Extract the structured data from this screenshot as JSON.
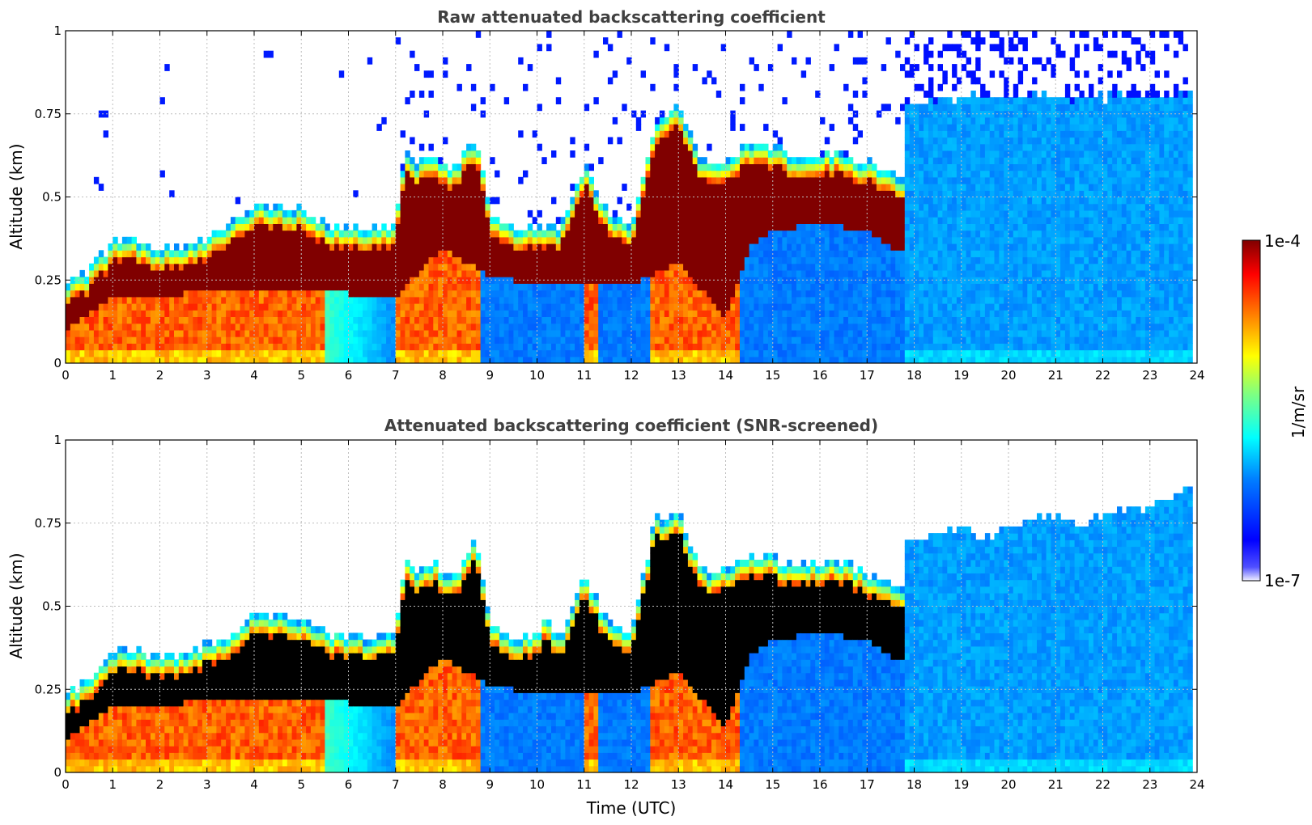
{
  "chart_data": [
    {
      "type": "heatmap",
      "title": "Raw attenuated backscattering coefficient",
      "xlabel": "",
      "ylabel": "Altitude (km)",
      "xlim": [
        0,
        24
      ],
      "ylim": [
        0,
        1
      ],
      "x_ticks": [
        0,
        1,
        2,
        3,
        4,
        5,
        6,
        7,
        8,
        9,
        10,
        11,
        12,
        13,
        14,
        15,
        16,
        17,
        18,
        19,
        20,
        21,
        22,
        23,
        24
      ],
      "y_ticks": [
        0,
        0.25,
        0.5,
        0.75,
        1
      ],
      "y_tick_labels": [
        "0",
        "0.25",
        "0.5",
        "0.75",
        "1"
      ],
      "grid": true,
      "snr_screened": false,
      "layer_top_km": [
        [
          0,
          0.24
        ],
        [
          0.5,
          0.28
        ],
        [
          1,
          0.37
        ],
        [
          1.5,
          0.37
        ],
        [
          2,
          0.34
        ],
        [
          2.5,
          0.36
        ],
        [
          3,
          0.38
        ],
        [
          3.5,
          0.42
        ],
        [
          4,
          0.48
        ],
        [
          4.5,
          0.47
        ],
        [
          5,
          0.46
        ],
        [
          5.5,
          0.42
        ],
        [
          6,
          0.41
        ],
        [
          6.5,
          0.4
        ],
        [
          7,
          0.42
        ],
        [
          7.2,
          0.64
        ],
        [
          7.5,
          0.6
        ],
        [
          7.8,
          0.64
        ],
        [
          8.2,
          0.58
        ],
        [
          8.7,
          0.68
        ],
        [
          9,
          0.46
        ],
        [
          9.5,
          0.4
        ],
        [
          10,
          0.42
        ],
        [
          10.5,
          0.4
        ],
        [
          11,
          0.6
        ],
        [
          11.5,
          0.45
        ],
        [
          12,
          0.42
        ],
        [
          12.5,
          0.72
        ],
        [
          13,
          0.78
        ],
        [
          13.5,
          0.6
        ],
        [
          14,
          0.62
        ],
        [
          14.5,
          0.66
        ],
        [
          15,
          0.65
        ],
        [
          15.5,
          0.62
        ],
        [
          16,
          0.63
        ],
        [
          16.5,
          0.64
        ],
        [
          17,
          0.6
        ],
        [
          17.5,
          0.58
        ],
        [
          17.75,
          0.55
        ]
      ],
      "layer_base_km": [
        [
          0,
          0.1
        ],
        [
          1,
          0.2
        ],
        [
          2,
          0.2
        ],
        [
          3,
          0.22
        ],
        [
          4,
          0.23
        ],
        [
          5,
          0.22
        ],
        [
          6,
          0.21
        ],
        [
          7,
          0.2
        ],
        [
          8,
          0.35
        ],
        [
          9,
          0.26
        ],
        [
          10,
          0.24
        ],
        [
          11,
          0.24
        ],
        [
          12,
          0.24
        ],
        [
          13,
          0.3
        ],
        [
          14,
          0.14
        ],
        [
          14.5,
          0.35
        ],
        [
          15,
          0.4
        ],
        [
          16,
          0.42
        ],
        [
          17,
          0.4
        ],
        [
          17.75,
          0.33
        ]
      ],
      "cloud_top_after_18_km": [
        [
          18,
          0.78
        ],
        [
          19,
          0.8
        ],
        [
          20,
          0.8
        ],
        [
          21,
          0.8
        ],
        [
          22,
          0.8
        ],
        [
          23,
          0.8
        ],
        [
          23.8,
          0.8
        ]
      ]
    },
    {
      "type": "heatmap",
      "title": "Attenuated backscattering coefficient (SNR-screened)",
      "xlabel": "Time (UTC)",
      "ylabel": "Altitude (km)",
      "xlim": [
        0,
        24
      ],
      "ylim": [
        0,
        1
      ],
      "x_ticks": [
        0,
        1,
        2,
        3,
        4,
        5,
        6,
        7,
        8,
        9,
        10,
        11,
        12,
        13,
        14,
        15,
        16,
        17,
        18,
        19,
        20,
        21,
        22,
        23,
        24
      ],
      "y_ticks": [
        0,
        0.25,
        0.5,
        0.75,
        1
      ],
      "y_tick_labels": [
        "0",
        "0.25",
        "0.5",
        "0.75",
        "1"
      ],
      "grid": true,
      "snr_screened": true,
      "layer_top_km": [
        [
          0,
          0.24
        ],
        [
          0.5,
          0.28
        ],
        [
          1,
          0.37
        ],
        [
          1.5,
          0.37
        ],
        [
          2,
          0.34
        ],
        [
          2.5,
          0.36
        ],
        [
          3,
          0.38
        ],
        [
          3.5,
          0.42
        ],
        [
          4,
          0.48
        ],
        [
          4.5,
          0.47
        ],
        [
          5,
          0.46
        ],
        [
          5.5,
          0.42
        ],
        [
          6,
          0.41
        ],
        [
          6.5,
          0.4
        ],
        [
          7,
          0.42
        ],
        [
          7.2,
          0.64
        ],
        [
          7.5,
          0.6
        ],
        [
          7.8,
          0.64
        ],
        [
          8.2,
          0.58
        ],
        [
          8.7,
          0.7
        ],
        [
          9,
          0.46
        ],
        [
          9.5,
          0.4
        ],
        [
          10,
          0.42
        ],
        [
          10.2,
          0.47
        ],
        [
          10.5,
          0.4
        ],
        [
          11,
          0.6
        ],
        [
          11.5,
          0.45
        ],
        [
          12,
          0.42
        ],
        [
          12.5,
          0.76
        ],
        [
          13,
          0.78
        ],
        [
          13.5,
          0.6
        ],
        [
          14,
          0.62
        ],
        [
          14.5,
          0.66
        ],
        [
          15,
          0.65
        ],
        [
          15.5,
          0.62
        ],
        [
          16,
          0.63
        ],
        [
          16.5,
          0.64
        ],
        [
          17,
          0.6
        ],
        [
          17.5,
          0.58
        ],
        [
          17.75,
          0.55
        ]
      ],
      "layer_base_km": [
        [
          0,
          0.1
        ],
        [
          1,
          0.2
        ],
        [
          2,
          0.2
        ],
        [
          3,
          0.22
        ],
        [
          4,
          0.23
        ],
        [
          5,
          0.22
        ],
        [
          6,
          0.21
        ],
        [
          7,
          0.2
        ],
        [
          8,
          0.35
        ],
        [
          9,
          0.26
        ],
        [
          10,
          0.24
        ],
        [
          11,
          0.24
        ],
        [
          12,
          0.24
        ],
        [
          13,
          0.3
        ],
        [
          14,
          0.14
        ],
        [
          14.5,
          0.35
        ],
        [
          15,
          0.4
        ],
        [
          16,
          0.42
        ],
        [
          17,
          0.4
        ],
        [
          17.75,
          0.33
        ]
      ],
      "cloud_top_after_18_km": [
        [
          18,
          0.7
        ],
        [
          18.5,
          0.72
        ],
        [
          19,
          0.74
        ],
        [
          19.5,
          0.7
        ],
        [
          20,
          0.74
        ],
        [
          20.5,
          0.76
        ],
        [
          21,
          0.78
        ],
        [
          21.5,
          0.74
        ],
        [
          22,
          0.77
        ],
        [
          22.5,
          0.8
        ],
        [
          23,
          0.8
        ],
        [
          23.5,
          0.82
        ],
        [
          23.8,
          0.86
        ]
      ]
    }
  ],
  "colorbar": {
    "label": "1/m/sr",
    "max_label": "1e-4",
    "min_label": "1e-7",
    "scale": "log",
    "range": [
      1e-07,
      0.0001
    ],
    "colormap": "jet",
    "colors": [
      "#e8e8ff",
      "#0000ff",
      "#0080ff",
      "#00ffff",
      "#80ff80",
      "#ffff00",
      "#ff8000",
      "#ff0000",
      "#800000"
    ]
  },
  "screened_saturation_color": "#000000"
}
